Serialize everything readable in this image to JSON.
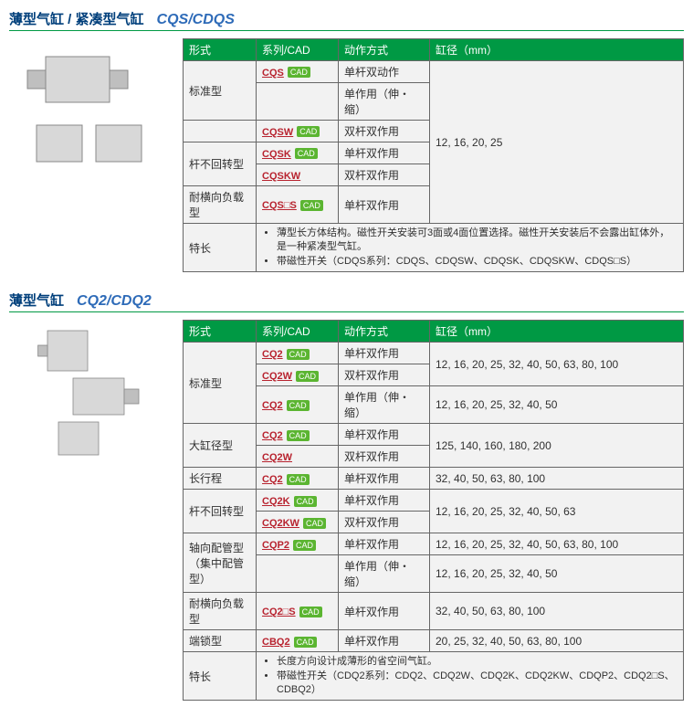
{
  "sections": [
    {
      "title_cn": "薄型气缸 / 紧凑型气缸",
      "title_en": "CQS/CDQS",
      "headers": [
        "形式",
        "系列/CAD",
        "动作方式",
        "缸径（mm）"
      ],
      "rows": [
        {
          "form": "标准型",
          "form_rowspan": 2,
          "series": "CQS",
          "cad": true,
          "action": "单杆双动作",
          "bore": "12, 16, 20, 25",
          "bore_rowspan": 6
        },
        {
          "form": null,
          "series": "",
          "cad": false,
          "action": "单作用（伸・缩）"
        },
        {
          "form": "",
          "form_rowspan": 1,
          "series": "CQSW",
          "cad": true,
          "action": "双杆双作用"
        },
        {
          "form": "杆不回转型",
          "form_rowspan": 2,
          "series": "CQSK",
          "cad": true,
          "action": "单杆双作用"
        },
        {
          "form": null,
          "series": "CQSKW",
          "cad": false,
          "action": "双杆双作用"
        },
        {
          "form": "耐横向负载型",
          "form_rowspan": 1,
          "series": "CQS□S",
          "cad": true,
          "action": "单杆双作用"
        }
      ],
      "feature_label": "特长",
      "features": [
        "薄型长方体结构。磁性开关安装可3面或4面位置选择。磁性开关安装后不会露出缸体外，是一种紧凑型气缸。",
        "带磁性开关（CDQS系列：CDQS、CDQSW、CDQSK、CDQSKW、CDQS□S）"
      ]
    },
    {
      "title_cn": "薄型气缸",
      "title_en": "CQ2/CDQ2",
      "headers": [
        "形式",
        "系列/CAD",
        "动作方式",
        "缸径（mm）"
      ],
      "rows": [
        {
          "form": "标准型",
          "form_rowspan": 3,
          "series": "CQ2",
          "cad": true,
          "action": "单杆双作用",
          "bore": "12, 16, 20, 25, 32, 40, 50, 63, 80, 100",
          "bore_rowspan": 2
        },
        {
          "form": null,
          "series": "CQ2W",
          "cad": true,
          "action": "双杆双作用"
        },
        {
          "form": null,
          "series": "CQ2",
          "cad": true,
          "action": "单作用（伸・缩）",
          "bore": "12, 16, 20, 25, 32, 40, 50",
          "bore_rowspan": 1
        },
        {
          "form": "大缸径型",
          "form_rowspan": 2,
          "series": "CQ2",
          "cad": true,
          "action": "单杆双作用",
          "bore": "125, 140, 160, 180, 200",
          "bore_rowspan": 2
        },
        {
          "form": null,
          "series": "CQ2W",
          "cad": false,
          "action": "双杆双作用"
        },
        {
          "form": "长行程",
          "form_rowspan": 1,
          "series": "CQ2",
          "cad": true,
          "action": "单杆双作用",
          "bore": "32, 40, 50, 63, 80, 100",
          "bore_rowspan": 1
        },
        {
          "form": "杆不回转型",
          "form_rowspan": 2,
          "series": "CQ2K",
          "cad": true,
          "action": "单杆双作用",
          "bore": "12, 16, 20, 25, 32, 40, 50, 63",
          "bore_rowspan": 2
        },
        {
          "form": null,
          "series": "CQ2KW",
          "cad": true,
          "action": "双杆双作用"
        },
        {
          "form": "轴向配管型\n（集中配管型）",
          "form_rowspan": 2,
          "series": "CQP2",
          "cad": true,
          "action": "单杆双作用",
          "bore": "12, 16, 20, 25, 32, 40, 50, 63, 80, 100",
          "bore_rowspan": 1
        },
        {
          "form": null,
          "series": "",
          "cad": false,
          "action": "单作用（伸・缩）",
          "bore": "12, 16, 20, 25, 32, 40, 50",
          "bore_rowspan": 1
        },
        {
          "form": "耐横向负载型",
          "form_rowspan": 1,
          "series": "CQ2□S",
          "cad": true,
          "action": "单杆双作用",
          "bore": "32, 40, 50, 63, 80, 100",
          "bore_rowspan": 1
        },
        {
          "form": "端锁型",
          "form_rowspan": 1,
          "series": "CBQ2",
          "cad": true,
          "action": "单杆双作用",
          "bore": "20, 25, 32, 40, 50, 63, 80, 100",
          "bore_rowspan": 1
        }
      ],
      "feature_label": "特长",
      "features": [
        "长度方向设计成薄形的省空间气缸。",
        "带磁性开关（CDQ2系列：CDQ2、CDQ2W、CDQ2K、CDQ2KW、CDQP2、CDQ2□S、CDBQ2）"
      ]
    }
  ],
  "cad_label": "CAD"
}
